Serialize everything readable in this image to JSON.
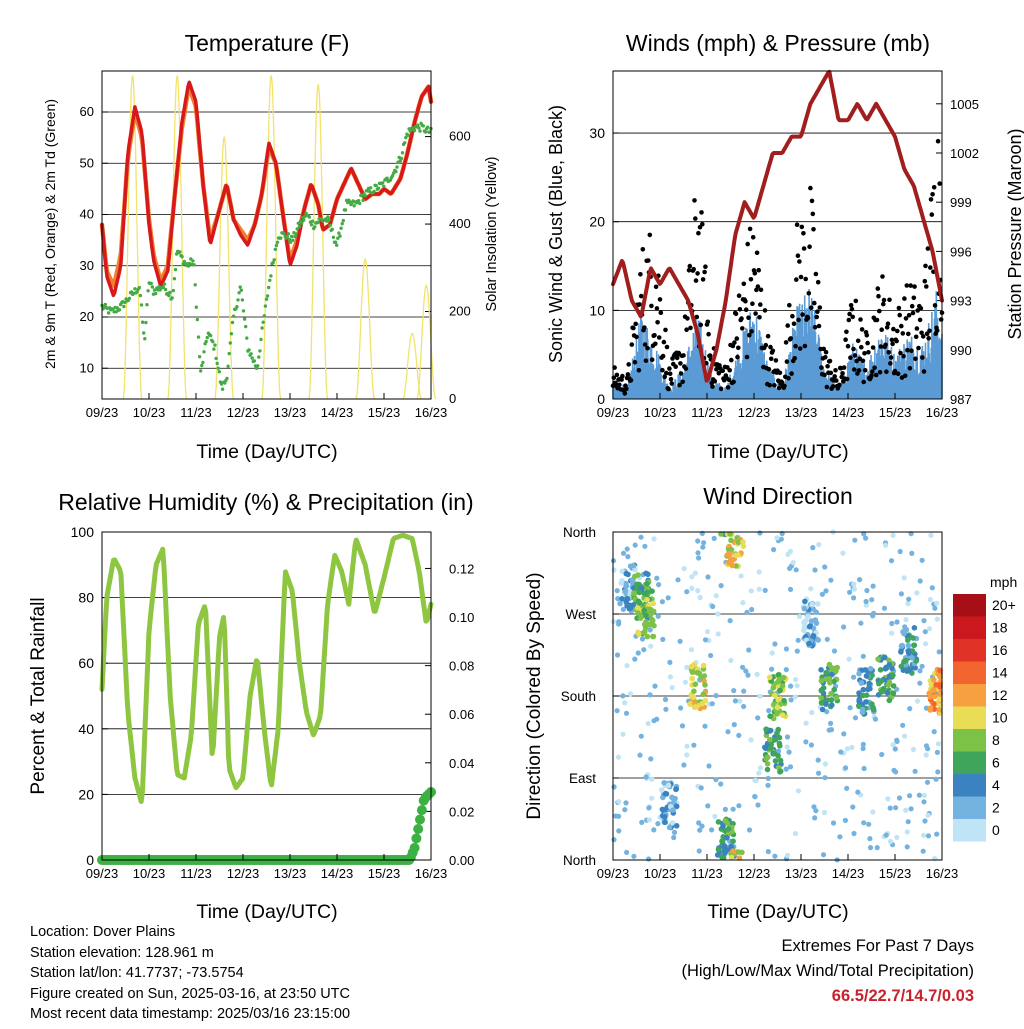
{
  "x_ticks": [
    "09/23",
    "10/23",
    "11/23",
    "12/23",
    "13/23",
    "14/23",
    "15/23",
    "16/23"
  ],
  "x_label": "Time (Day/UTC)",
  "colors": {
    "temp_2m": "#d7191c",
    "temp_9m": "#f08030",
    "dewpoint": "#44aa44",
    "solar": "#f2e36a",
    "wind": "#5b9bd5",
    "gust": "#000000",
    "pressure": "#a01e1e",
    "rh": "#8ec641",
    "precip": "#3cb043"
  },
  "panels": {
    "temperature": {
      "title": "Temperature (F)",
      "ylabel_left": "2m & 9m T (Red, Orange) & 2m Td (Green)",
      "ylabel_right": "Solar Insolation (Yellow)",
      "left_ticks": [
        "10",
        "20",
        "30",
        "40",
        "50",
        "60"
      ],
      "right_ticks": [
        "0",
        "200",
        "400",
        "600"
      ]
    },
    "winds": {
      "title": "Winds (mph) & Pressure (mb)",
      "ylabel_left": "Sonic Wind & Gust (Blue, Black)",
      "ylabel_right": "Station Pressure (Maroon)",
      "left_ticks": [
        "0",
        "10",
        "20",
        "30"
      ],
      "right_ticks": [
        "987",
        "990",
        "993",
        "996",
        "999",
        "1002",
        "1005"
      ]
    },
    "humidity": {
      "title": "Relative Humidity (%) & Precipitation (in)",
      "ylabel_left": "Percent & Total Rainfall",
      "left_ticks": [
        "0",
        "20",
        "40",
        "60",
        "80",
        "100"
      ],
      "right_ticks": [
        "0.00",
        "0.02",
        "0.04",
        "0.06",
        "0.08",
        "0.10",
        "0.12"
      ]
    },
    "direction": {
      "title": "Wind Direction",
      "ylabel_left": "Direction (Colored By Speed)",
      "left_ticks": [
        "North",
        "East",
        "South",
        "West",
        "North"
      ]
    }
  },
  "legend": {
    "unit": "mph",
    "labels": [
      "20+",
      "18",
      "16",
      "14",
      "12",
      "10",
      "8",
      "6",
      "4",
      "2",
      "0"
    ],
    "colors": [
      "#a50f15",
      "#cb181d",
      "#e03226",
      "#f26530",
      "#f7a040",
      "#e8dd55",
      "#7cc247",
      "#3fa55a",
      "#3a82c0",
      "#74b3e0",
      "#bfe4f5"
    ]
  },
  "footer": {
    "location": "Location: Dover Plains",
    "elevation": "Station elevation: 128.961 m",
    "latlon": "Station lat/lon: 41.7737; -73.5754",
    "created": "Figure created on Sun, 2025-03-16, at 23:50 UTC",
    "recent": "Most recent data timestamp: 2025/03/16 23:15:00",
    "extremes_title": "Extremes For Past 7 Days",
    "extremes_sub": "(High/Low/Max Wind/Total Precipitation)",
    "extremes_values": "66.5/22.7/14.7/0.03"
  },
  "chart_data": [
    {
      "type": "line",
      "title": "Temperature (F)",
      "xlabel": "Time (Day/UTC)",
      "ylabel": "2m & 9m T (Red, Orange) & 2m Td (Green)",
      "y2label": "Solar Insolation (Yellow)",
      "ylim": [
        4,
        68
      ],
      "y2lim": [
        0,
        750
      ],
      "grid": true,
      "series": [
        {
          "name": "2m T",
          "axis": "left",
          "x": [
            0,
            0.1,
            0.25,
            0.4,
            0.55,
            0.7,
            0.85,
            1,
            1.1,
            1.25,
            1.4,
            1.55,
            1.7,
            1.85,
            2,
            2.15,
            2.3,
            2.5,
            2.65,
            2.8,
            2.95,
            3.1,
            3.25,
            3.4,
            3.55,
            3.7,
            3.85,
            4,
            4.15,
            4.3,
            4.45,
            4.6,
            4.7,
            4.85,
            5,
            5.15,
            5.3,
            5.45,
            5.6,
            5.75,
            5.9,
            6,
            6.15,
            6.35,
            6.5,
            6.65,
            6.8,
            6.95,
            7
          ],
          "y": [
            38,
            28,
            24,
            30,
            52,
            61,
            56,
            38,
            31,
            26,
            29,
            44,
            58,
            66,
            62,
            46,
            34,
            41,
            46,
            39,
            36,
            34,
            38,
            44,
            54,
            50,
            40,
            30,
            34,
            41,
            46,
            42,
            37,
            38,
            43,
            46,
            49,
            46,
            43,
            44,
            44,
            45,
            44,
            47,
            52,
            58,
            63,
            65,
            62
          ]
        },
        {
          "name": "9m T",
          "axis": "left",
          "x": [
            0,
            0.1,
            0.25,
            0.4,
            0.55,
            0.7,
            0.85,
            1,
            1.1,
            1.25,
            1.4,
            1.55,
            1.7,
            1.85,
            2,
            2.15,
            2.3,
            2.5,
            2.65,
            2.8,
            2.95,
            3.1,
            3.25,
            3.4,
            3.55,
            3.7,
            3.85,
            4,
            4.15,
            4.3,
            4.45,
            4.6,
            4.7,
            4.85,
            5,
            5.15,
            5.3,
            5.45,
            5.6,
            5.75,
            5.9,
            6,
            6.15,
            6.35,
            6.5,
            6.65,
            6.8,
            6.95,
            7
          ],
          "y": [
            38,
            29,
            26,
            32,
            51,
            60,
            55,
            39,
            32,
            27,
            30,
            44,
            57,
            65,
            61,
            46,
            35,
            41,
            46,
            39,
            37,
            35,
            38,
            44,
            53,
            50,
            40,
            31,
            35,
            41,
            46,
            42,
            37,
            38,
            43,
            46,
            49,
            46,
            43,
            44,
            44,
            45,
            44,
            47,
            52,
            58,
            63,
            65,
            62
          ]
        },
        {
          "name": "2m Td",
          "axis": "left",
          "x": [
            0,
            0.2,
            0.4,
            0.6,
            0.8,
            0.9,
            1,
            1.1,
            1.3,
            1.5,
            1.6,
            1.8,
            1.95,
            2.1,
            2.25,
            2.4,
            2.55,
            2.65,
            2.8,
            2.95,
            3.1,
            3.3,
            3.45,
            3.6,
            3.75,
            3.9,
            4.05,
            4.2,
            4.35,
            4.5,
            4.65,
            4.8,
            5,
            5.2,
            5.4,
            5.6,
            5.8,
            6,
            6.2,
            6.35,
            6.5,
            6.65,
            6.8,
            7
          ],
          "y": [
            22,
            21,
            22,
            24,
            26,
            15,
            27,
            25,
            26,
            24,
            33,
            30,
            31,
            9,
            17,
            14,
            6,
            8,
            20,
            26,
            14,
            10,
            20,
            29,
            36,
            36,
            35,
            38,
            40,
            38,
            39,
            39,
            34,
            42,
            42,
            44,
            45,
            46,
            48,
            51,
            56,
            57,
            57,
            56
          ]
        },
        {
          "name": "Solar",
          "axis": "right",
          "peaks": [
            0.65,
            1.6,
            2.6,
            3.6,
            4.6,
            5.6,
            6.6,
            6.9
          ],
          "peak_values": [
            740,
            740,
            600,
            740,
            720,
            320,
            150,
            260
          ]
        }
      ]
    },
    {
      "type": "line",
      "title": "Winds (mph) & Pressure (mb)",
      "xlabel": "Time (Day/UTC)",
      "ylabel": "Sonic Wind & Gust (Blue, Black)",
      "y2label": "Station Pressure (Maroon)",
      "ylim": [
        0,
        37
      ],
      "y2lim": [
        987,
        1007
      ],
      "grid": true,
      "series": [
        {
          "name": "Station Pressure",
          "axis": "right",
          "x": [
            0,
            0.2,
            0.4,
            0.6,
            0.8,
            1,
            1.2,
            1.4,
            1.6,
            1.8,
            2,
            2.2,
            2.4,
            2.6,
            2.8,
            3,
            3.2,
            3.4,
            3.6,
            3.8,
            4,
            4.2,
            4.4,
            4.6,
            4.8,
            5,
            5.2,
            5.4,
            5.6,
            5.8,
            6,
            6.2,
            6.4,
            6.6,
            6.8,
            7
          ],
          "y": [
            994,
            995.5,
            993,
            992,
            995,
            994,
            995,
            994,
            993,
            991,
            988,
            990,
            993,
            997,
            999,
            998,
            1000,
            1002,
            1002,
            1003,
            1003,
            1005,
            1006,
            1007,
            1004,
            1004,
            1005,
            1004,
            1005,
            1004,
            1003,
            1001,
            1000,
            998,
            996,
            993
          ]
        },
        {
          "name": "Sonic Wind",
          "axis": "left",
          "x": [
            0,
            0.3,
            0.6,
            0.9,
            1.2,
            1.5,
            1.8,
            2.1,
            2.4,
            2.7,
            3,
            3.3,
            3.6,
            3.9,
            4.2,
            4.5,
            4.8,
            5.1,
            5.4,
            5.7,
            6,
            6.3,
            6.6,
            6.9,
            7
          ],
          "y": [
            2,
            1,
            8,
            5,
            1,
            3,
            8,
            2,
            1,
            5,
            9,
            3,
            1,
            8,
            10,
            3,
            1,
            5,
            3,
            7,
            4,
            6,
            5,
            10,
            6
          ]
        },
        {
          "name": "Gust",
          "axis": "left",
          "x": [
            0,
            0.3,
            0.6,
            0.9,
            1.2,
            1.5,
            1.8,
            2.1,
            2.4,
            2.7,
            3,
            3.3,
            3.6,
            3.9,
            4.2,
            4.5,
            4.8,
            5.1,
            5.4,
            5.7,
            6,
            6.3,
            6.6,
            6.9,
            7
          ],
          "y": [
            3,
            2,
            14,
            17,
            3,
            6,
            22,
            5,
            3,
            11,
            18,
            6,
            2,
            16,
            20,
            5,
            2,
            10,
            6,
            12,
            8,
            11,
            10,
            27,
            34
          ]
        }
      ]
    },
    {
      "type": "line",
      "title": "Relative Humidity (%) & Precipitation (in)",
      "xlabel": "Time (Day/UTC)",
      "ylabel": "Percent & Total Rainfall",
      "ylim": [
        0,
        100
      ],
      "y2lim": [
        0,
        0.135
      ],
      "grid": true,
      "series": [
        {
          "name": "Relative Humidity",
          "axis": "left",
          "x": [
            0,
            0.1,
            0.25,
            0.4,
            0.55,
            0.7,
            0.85,
            1,
            1.15,
            1.3,
            1.45,
            1.6,
            1.75,
            1.9,
            2.05,
            2.2,
            2.35,
            2.5,
            2.6,
            2.7,
            2.85,
            3,
            3.15,
            3.3,
            3.45,
            3.6,
            3.75,
            3.9,
            4.05,
            4.2,
            4.35,
            4.5,
            4.65,
            4.8,
            4.95,
            5.1,
            5.25,
            5.4,
            5.6,
            5.8,
            6,
            6.2,
            6.4,
            6.6,
            6.75,
            6.9,
            7
          ],
          "y": [
            52,
            80,
            92,
            88,
            45,
            25,
            17,
            70,
            90,
            95,
            50,
            26,
            25,
            38,
            72,
            78,
            30,
            68,
            75,
            28,
            22,
            25,
            50,
            62,
            40,
            22,
            40,
            88,
            82,
            60,
            45,
            38,
            44,
            78,
            93,
            88,
            78,
            98,
            90,
            75,
            86,
            98,
            99,
            98,
            88,
            72,
            78
          ]
        },
        {
          "name": "Total Precipitation",
          "axis": "right",
          "x": [
            0,
            6.55,
            6.65,
            6.75,
            6.85,
            7
          ],
          "y": [
            0,
            0,
            0.005,
            0.015,
            0.025,
            0.028
          ]
        }
      ]
    },
    {
      "type": "scatter",
      "title": "Wind Direction",
      "xlabel": "Time (Day/UTC)",
      "ylabel": "Direction (Colored By Speed)",
      "ylim": [
        0,
        360
      ],
      "y_categories": [
        "North",
        "East",
        "South",
        "West",
        "North"
      ],
      "color_by": "speed (mph)",
      "clusters": [
        {
          "x": 0.3,
          "dir": 300,
          "speed": 2
        },
        {
          "x": 0.6,
          "dir": 290,
          "speed": 6
        },
        {
          "x": 0.7,
          "dir": 270,
          "speed": 8
        },
        {
          "x": 1.2,
          "dir": 60,
          "speed": 2
        },
        {
          "x": 1.8,
          "dir": 190,
          "speed": 10
        },
        {
          "x": 2.4,
          "dir": 20,
          "speed": 6
        },
        {
          "x": 2.6,
          "dir": 345,
          "speed": 10
        },
        {
          "x": 3.5,
          "dir": 180,
          "speed": 8
        },
        {
          "x": 3.4,
          "dir": 120,
          "speed": 6
        },
        {
          "x": 4.2,
          "dir": 260,
          "speed": 2
        },
        {
          "x": 4.6,
          "dir": 190,
          "speed": 6
        },
        {
          "x": 5.4,
          "dir": 185,
          "speed": 4
        },
        {
          "x": 5.8,
          "dir": 200,
          "speed": 6
        },
        {
          "x": 6.3,
          "dir": 230,
          "speed": 4
        },
        {
          "x": 6.9,
          "dir": 185,
          "speed": 12
        }
      ]
    }
  ]
}
